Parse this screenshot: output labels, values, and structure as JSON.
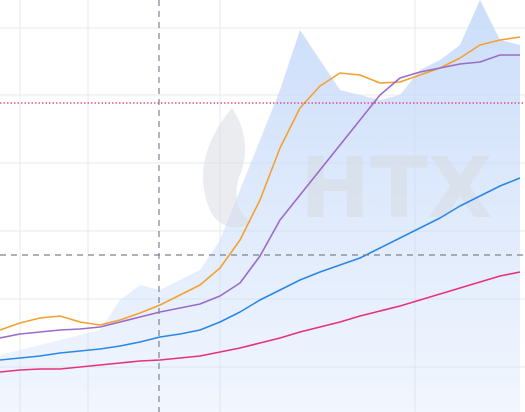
{
  "chart_data": {
    "type": "line",
    "watermark": "HTX",
    "x": [
      0,
      20,
      40,
      60,
      80,
      100,
      120,
      140,
      160,
      180,
      200,
      220,
      240,
      260,
      280,
      300,
      320,
      340,
      360,
      380,
      400,
      420,
      440,
      460,
      480,
      500,
      520
    ],
    "xlim": [
      0,
      525
    ],
    "xticks": [
      20,
      88,
      220,
      415
    ],
    "ylim": [
      0,
      412
    ],
    "yticks": [
      45,
      113,
      181,
      249,
      317,
      384
    ],
    "grid": true,
    "crosshair": {
      "x": 159,
      "y": 157
    },
    "reference_line": {
      "value": 309,
      "color": "#e0307a"
    },
    "area": {
      "color": "#c9dcfa",
      "values": [
        57,
        62,
        67,
        72,
        77,
        82,
        112,
        127,
        122,
        132,
        142,
        172,
        222,
        272,
        322,
        382,
        352,
        322,
        317,
        312,
        317,
        342,
        352,
        367,
        412,
        372,
        367
      ]
    },
    "series": [
      {
        "color": "#f5a030",
        "values": [
          82,
          89,
          94,
          96,
          90,
          87,
          92,
          99,
          107,
          117,
          127,
          144,
          172,
          212,
          264,
          304,
          326,
          339,
          337,
          329,
          330,
          337,
          344,
          354,
          367,
          372,
          375
        ]
      },
      {
        "color": "#9b6bc9",
        "values": [
          74,
          78,
          80,
          82,
          83,
          85,
          90,
          95,
          100,
          104,
          108,
          116,
          129,
          156,
          192,
          217,
          242,
          267,
          292,
          317,
          334,
          340,
          344,
          348,
          350,
          357,
          357
        ]
      },
      {
        "color": "#2b88e6",
        "values": [
          52,
          54,
          56,
          59,
          61,
          63,
          66,
          70,
          75,
          78,
          82,
          90,
          100,
          112,
          122,
          132,
          140,
          147,
          154,
          164,
          174,
          184,
          194,
          206,
          216,
          226,
          234
        ]
      },
      {
        "color": "#e6327a",
        "values": [
          40,
          42,
          43,
          43,
          45,
          47,
          49,
          51,
          52,
          54,
          56,
          60,
          64,
          69,
          74,
          80,
          85,
          90,
          96,
          101,
          106,
          112,
          118,
          124,
          130,
          136,
          140
        ]
      }
    ]
  }
}
